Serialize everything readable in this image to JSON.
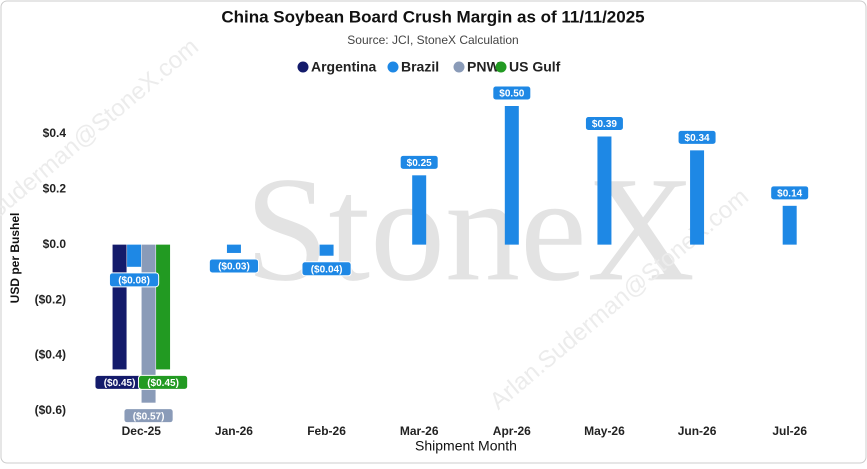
{
  "chart_data": {
    "type": "bar",
    "title": "China Soybean Board Crush Margin as of 11/11/2025",
    "subtitle": "Source: JCI, StoneX Calculation",
    "watermark": "StoneX",
    "watermark_email": "Arlan.Suderman@StoneX.com",
    "x_label": "Shipment Month",
    "y_label": "USD per Bushel",
    "categories": [
      "Dec-25",
      "Jan-26",
      "Feb-26",
      "Mar-26",
      "Apr-26",
      "May-26",
      "Jun-26",
      "Jul-26"
    ],
    "series": [
      {
        "name": "Argentina",
        "color": "#141b6b",
        "values": [
          -0.45,
          null,
          null,
          null,
          null,
          null,
          null,
          null
        ],
        "value_labels": [
          "($0.45)",
          null,
          null,
          null,
          null,
          null,
          null,
          null
        ]
      },
      {
        "name": "Brazil",
        "color": "#1e88e5",
        "values": [
          -0.08,
          -0.03,
          -0.04,
          0.25,
          0.5,
          0.39,
          0.34,
          0.14
        ],
        "value_labels": [
          "($0.08)",
          "($0.03)",
          "($0.04)",
          "$0.25",
          "$0.50",
          "$0.39",
          "$0.34",
          "$0.14"
        ]
      },
      {
        "name": "PNW",
        "color": "#8a9bb8",
        "values": [
          -0.57,
          null,
          null,
          null,
          null,
          null,
          null,
          null
        ],
        "value_labels": [
          "($0.57)",
          null,
          null,
          null,
          null,
          null,
          null,
          null
        ]
      },
      {
        "name": "US Gulf",
        "color": "#229a22",
        "values": [
          -0.45,
          null,
          null,
          null,
          null,
          null,
          null,
          null
        ],
        "value_labels": [
          "($0.45)",
          null,
          null,
          null,
          null,
          null,
          null,
          null
        ]
      }
    ],
    "ylim": [
      -0.6,
      0.5
    ],
    "yticks": [
      {
        "value": -0.6,
        "label": "($0.6)"
      },
      {
        "value": -0.4,
        "label": "($0.4)"
      },
      {
        "value": -0.2,
        "label": "($0.2)"
      },
      {
        "value": 0,
        "label": "$0.0"
      },
      {
        "value": 0.2,
        "label": "$0.2"
      },
      {
        "value": 0.4,
        "label": "$0.4"
      }
    ],
    "grid": false,
    "legend": "top"
  }
}
